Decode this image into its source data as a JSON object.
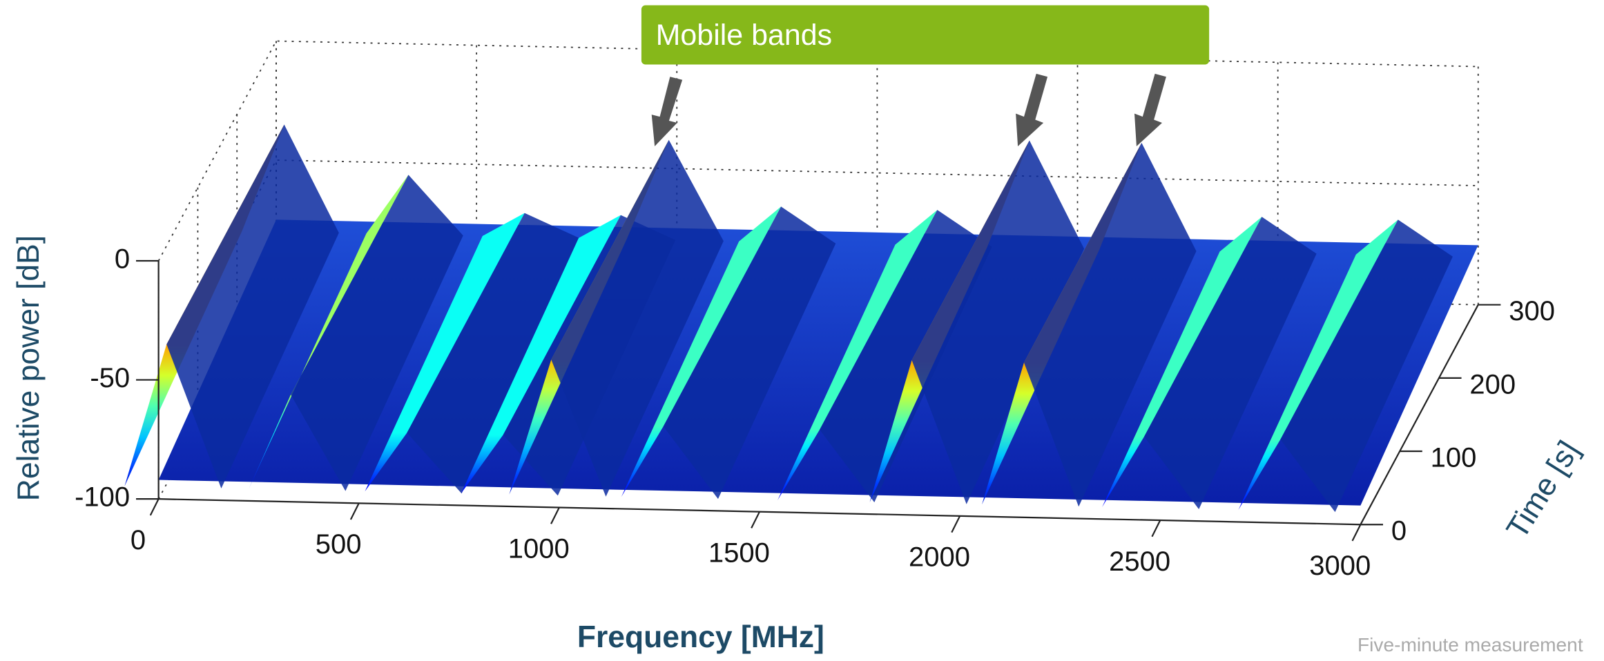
{
  "chart_data": {
    "type": "surface3d",
    "annotation": "Mobile bands",
    "footnote": "Five-minute measurement",
    "xlabel": "Frequency  [MHz]",
    "ylabel": "Time [s]",
    "zlabel": "Relative power  [dB]",
    "x": [
      20,
      330,
      620,
      860,
      980,
      1260,
      1650,
      1880,
      2160,
      2460,
      2800
    ],
    "values": [
      -35,
      -55,
      -70,
      -70,
      -38,
      -65,
      -65,
      -35,
      -35,
      -65,
      -65
    ],
    "xlim": [
      0,
      3000
    ],
    "xticks": [
      0,
      500,
      1000,
      1500,
      2000,
      2500,
      3000
    ],
    "ylim": [
      0,
      300
    ],
    "yticks": [
      0,
      100,
      200,
      300
    ],
    "zlim": [
      -100,
      0
    ],
    "zticks": [
      -100,
      -50,
      0
    ],
    "grid": true
  }
}
